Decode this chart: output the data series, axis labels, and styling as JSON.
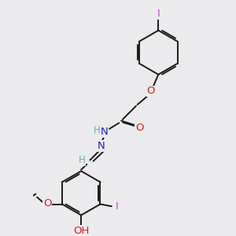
{
  "bg_color": "#ebebed",
  "bond_color": "#1a1a1a",
  "bond_width": 1.4,
  "atom_colors": {
    "C": "#1a1a1a",
    "H": "#6aacac",
    "N": "#2020bb",
    "O": "#cc2020",
    "I": "#cc44cc"
  },
  "font_size": 9.5,
  "font_size_H": 8.5
}
